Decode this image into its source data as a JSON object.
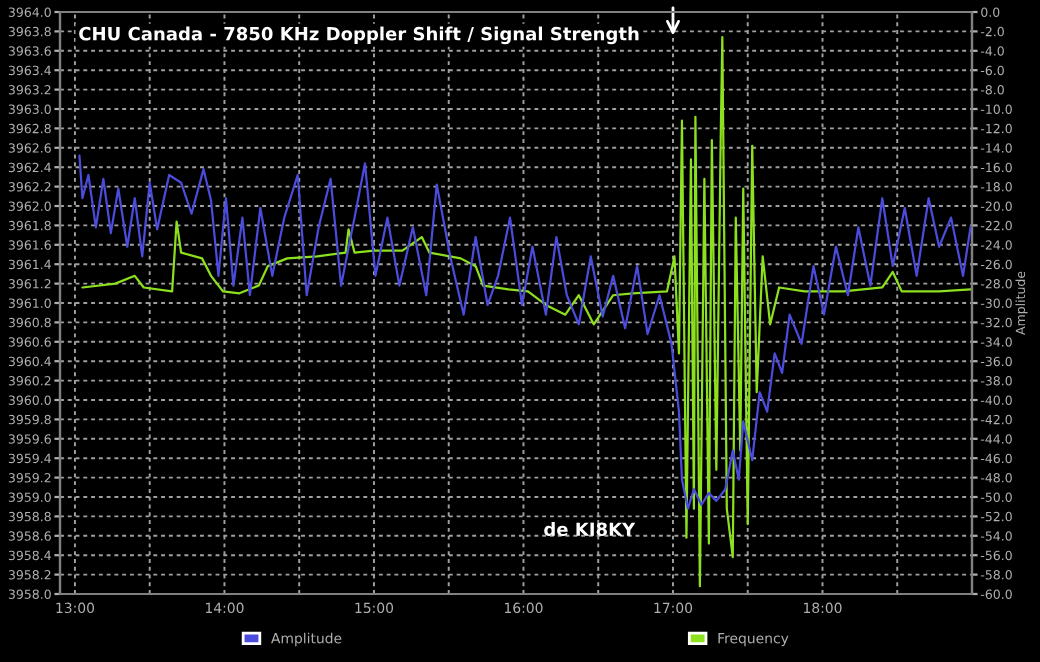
{
  "chart_data": {
    "type": "line",
    "title": "CHU Canada - 7850 KHz Doppler Shift / Signal Strength",
    "y2label": "Amplitude",
    "annotations": [
      "de KI8KY"
    ],
    "xlim": [
      12.9,
      19.0
    ],
    "xticks": [
      {
        "value": 13,
        "label": "13:00"
      },
      {
        "value": 13.5,
        "label": null
      },
      {
        "value": 14,
        "label": "14:00"
      },
      {
        "value": 14.5,
        "label": null
      },
      {
        "value": 15,
        "label": "15:00"
      },
      {
        "value": 15.5,
        "label": null
      },
      {
        "value": 16,
        "label": "16:00"
      },
      {
        "value": 16.5,
        "label": null
      },
      {
        "value": 17,
        "label": "17:00"
      },
      {
        "value": 17.5,
        "label": null
      },
      {
        "value": 18,
        "label": "18:00"
      },
      {
        "value": 18.5,
        "label": null
      }
    ],
    "ylim": [
      3958.0,
      3964.0
    ],
    "yticks": [
      {
        "value": 3958.0,
        "label": "3958.0"
      },
      {
        "value": 3958.2,
        "label": "3958.2"
      },
      {
        "value": 3958.4,
        "label": "3958.4"
      },
      {
        "value": 3958.6,
        "label": "3958.6"
      },
      {
        "value": 3958.8,
        "label": "3958.8"
      },
      {
        "value": 3959.0,
        "label": "3959.0"
      },
      {
        "value": 3959.2,
        "label": "3959.2"
      },
      {
        "value": 3959.4,
        "label": "3959.4"
      },
      {
        "value": 3959.6,
        "label": "3959.6"
      },
      {
        "value": 3959.8,
        "label": "3959.8"
      },
      {
        "value": 3960.0,
        "label": "3960.0"
      },
      {
        "value": 3960.2,
        "label": "3960.2"
      },
      {
        "value": 3960.4,
        "label": "3960.4"
      },
      {
        "value": 3960.6,
        "label": "3960.6"
      },
      {
        "value": 3960.8,
        "label": "3960.8"
      },
      {
        "value": 3961.0,
        "label": "3961.0"
      },
      {
        "value": 3961.2,
        "label": "3961.2"
      },
      {
        "value": 3961.4,
        "label": "3961.4"
      },
      {
        "value": 3961.6,
        "label": "3961.6"
      },
      {
        "value": 3961.8,
        "label": "3961.8"
      },
      {
        "value": 3962.0,
        "label": "3962.0"
      },
      {
        "value": 3962.2,
        "label": "3962.2"
      },
      {
        "value": 3962.4,
        "label": "3962.4"
      },
      {
        "value": 3962.6,
        "label": "3962.6"
      },
      {
        "value": 3962.8,
        "label": "3962.8"
      },
      {
        "value": 3963.0,
        "label": "3963.0"
      },
      {
        "value": 3963.2,
        "label": "3963.2"
      },
      {
        "value": 3963.4,
        "label": "3963.4"
      },
      {
        "value": 3963.6,
        "label": "3963.6"
      },
      {
        "value": 3963.8,
        "label": "3963.8"
      },
      {
        "value": 3964.0,
        "label": "3964.0"
      }
    ],
    "y2lim": [
      -60.0,
      0.0
    ],
    "y2ticks": [
      {
        "value": -60,
        "label": "-60.0"
      },
      {
        "value": -58,
        "label": "-58.0"
      },
      {
        "value": -56,
        "label": "-56.0"
      },
      {
        "value": -54,
        "label": "-54.0"
      },
      {
        "value": -52,
        "label": "-52.0"
      },
      {
        "value": -50,
        "label": "-50.0"
      },
      {
        "value": -48,
        "label": "-48.0"
      },
      {
        "value": -46,
        "label": "-46.0"
      },
      {
        "value": -44,
        "label": "-44.0"
      },
      {
        "value": -42,
        "label": "-42.0"
      },
      {
        "value": -40,
        "label": "-40.0"
      },
      {
        "value": -38,
        "label": "-38.0"
      },
      {
        "value": -36,
        "label": "-36.0"
      },
      {
        "value": -34,
        "label": "-34.0"
      },
      {
        "value": -32,
        "label": "-32.0"
      },
      {
        "value": -30,
        "label": "-30.0"
      },
      {
        "value": -28,
        "label": "-28.0"
      },
      {
        "value": -26,
        "label": "-26.0"
      },
      {
        "value": -24,
        "label": "-24.0"
      },
      {
        "value": -22,
        "label": "-22.0"
      },
      {
        "value": -20,
        "label": "-20.0"
      },
      {
        "value": -18,
        "label": "-18.0"
      },
      {
        "value": -16,
        "label": "-16.0"
      },
      {
        "value": -14,
        "label": "-14.0"
      },
      {
        "value": -12,
        "label": "-12.0"
      },
      {
        "value": -10,
        "label": "-10.0"
      },
      {
        "value": -8,
        "label": "-8.0"
      },
      {
        "value": -6,
        "label": "-6.0"
      },
      {
        "value": -4,
        "label": "-4.0"
      },
      {
        "value": -2,
        "label": "-2.0"
      },
      {
        "value": 0,
        "label": "0.0"
      }
    ],
    "grid": true,
    "legend": "bottom",
    "line_style": "solid",
    "series": [
      {
        "name": "Amplitude",
        "color": "#4b4bdc",
        "axis": "y2",
        "x": [
          13.03,
          13.05,
          13.09,
          13.14,
          13.19,
          13.24,
          13.29,
          13.35,
          13.4,
          13.45,
          13.5,
          13.55,
          13.63,
          13.71,
          13.78,
          13.86,
          13.91,
          13.96,
          14.01,
          14.06,
          14.12,
          14.17,
          14.24,
          14.32,
          14.4,
          14.49,
          14.55,
          14.63,
          14.71,
          14.78,
          14.87,
          14.94,
          15.01,
          15.09,
          15.17,
          15.26,
          15.35,
          15.42,
          15.51,
          15.6,
          15.68,
          15.76,
          15.83,
          15.91,
          15.99,
          16.06,
          16.15,
          16.22,
          16.29,
          16.37,
          16.45,
          16.53,
          16.6,
          16.68,
          16.76,
          16.83,
          16.91,
          16.99,
          17.04,
          17.06,
          17.1,
          17.14,
          17.19,
          17.24,
          17.29,
          17.35,
          17.4,
          17.44,
          17.47,
          17.53,
          17.58,
          17.63,
          17.68,
          17.73,
          17.78,
          17.86,
          17.94,
          18.01,
          18.09,
          18.17,
          18.24,
          18.32,
          18.4,
          18.47,
          18.55,
          18.63,
          18.71,
          18.78,
          18.86,
          18.94,
          18.99
        ],
        "values": [
          -14.8,
          -19.2,
          -16.8,
          -22.2,
          -17.2,
          -22.8,
          -18.2,
          -24.2,
          -19.2,
          -25.2,
          -17.6,
          -22.4,
          -16.8,
          -17.6,
          -20.8,
          -16.2,
          -19.4,
          -27.2,
          -19.2,
          -28.2,
          -21.2,
          -29.2,
          -20.2,
          -27.2,
          -21.2,
          -16.8,
          -29.2,
          -22.2,
          -17.2,
          -28.2,
          -21.2,
          -15.6,
          -27.2,
          -21.2,
          -28.2,
          -22.2,
          -29.2,
          -17.8,
          -25.2,
          -31.2,
          -23.2,
          -30.2,
          -27.2,
          -21.2,
          -30.2,
          -24.2,
          -31.2,
          -23.2,
          -29.2,
          -32.2,
          -25.2,
          -31.4,
          -27.2,
          -32.6,
          -26.2,
          -33.2,
          -29.2,
          -34.2,
          -41.2,
          -48.2,
          -51.2,
          -49.2,
          -50.8,
          -49.6,
          -50.4,
          -49.2,
          -45.2,
          -48.2,
          -42.2,
          -46.2,
          -39.2,
          -41.2,
          -35.2,
          -37.2,
          -31.2,
          -34.2,
          -26.2,
          -31.2,
          -24.2,
          -29.2,
          -22.2,
          -28.2,
          -19.2,
          -26.2,
          -20.2,
          -27.2,
          -19.2,
          -24.2,
          -21.2,
          -27.2,
          -22.2
        ]
      },
      {
        "name": "Frequency",
        "color": "#8ce01e",
        "x": [
          13.05,
          13.27,
          13.4,
          13.46,
          13.65,
          13.68,
          13.71,
          13.85,
          13.91,
          13.99,
          14.1,
          14.23,
          14.29,
          14.42,
          14.62,
          14.81,
          14.83,
          14.87,
          15.0,
          15.19,
          15.32,
          15.37,
          15.58,
          15.68,
          15.73,
          15.9,
          16.03,
          16.15,
          16.28,
          16.37,
          16.47,
          16.6,
          16.73,
          16.96,
          17.01,
          17.04,
          17.06,
          17.09,
          17.12,
          17.14,
          17.15,
          17.18,
          17.21,
          17.24,
          17.26,
          17.29,
          17.32,
          17.33,
          17.36,
          17.4,
          17.42,
          17.45,
          17.47,
          17.5,
          17.53,
          17.56,
          17.6,
          17.65,
          17.71,
          17.88,
          18.14,
          18.4,
          18.47,
          18.53,
          18.78,
          18.99
        ],
        "values": [
          3961.16,
          3961.2,
          3961.28,
          3961.16,
          3961.12,
          3961.84,
          3961.52,
          3961.46,
          3961.28,
          3961.12,
          3961.1,
          3961.18,
          3961.38,
          3961.46,
          3961.48,
          3961.52,
          3961.76,
          3961.52,
          3961.54,
          3961.54,
          3961.68,
          3961.52,
          3961.46,
          3961.38,
          3961.18,
          3961.14,
          3961.12,
          3960.98,
          3960.88,
          3961.08,
          3960.78,
          3961.08,
          3961.1,
          3961.12,
          3961.48,
          3960.48,
          3962.88,
          3958.58,
          3962.48,
          3958.88,
          3962.92,
          3958.08,
          3962.28,
          3958.52,
          3962.68,
          3959.28,
          3962.78,
          3963.74,
          3958.88,
          3958.38,
          3961.88,
          3959.48,
          3962.18,
          3958.72,
          3962.62,
          3960.08,
          3961.48,
          3960.78,
          3961.16,
          3961.12,
          3961.12,
          3961.16,
          3961.32,
          3961.12,
          3961.12,
          3961.14
        ]
      }
    ]
  }
}
